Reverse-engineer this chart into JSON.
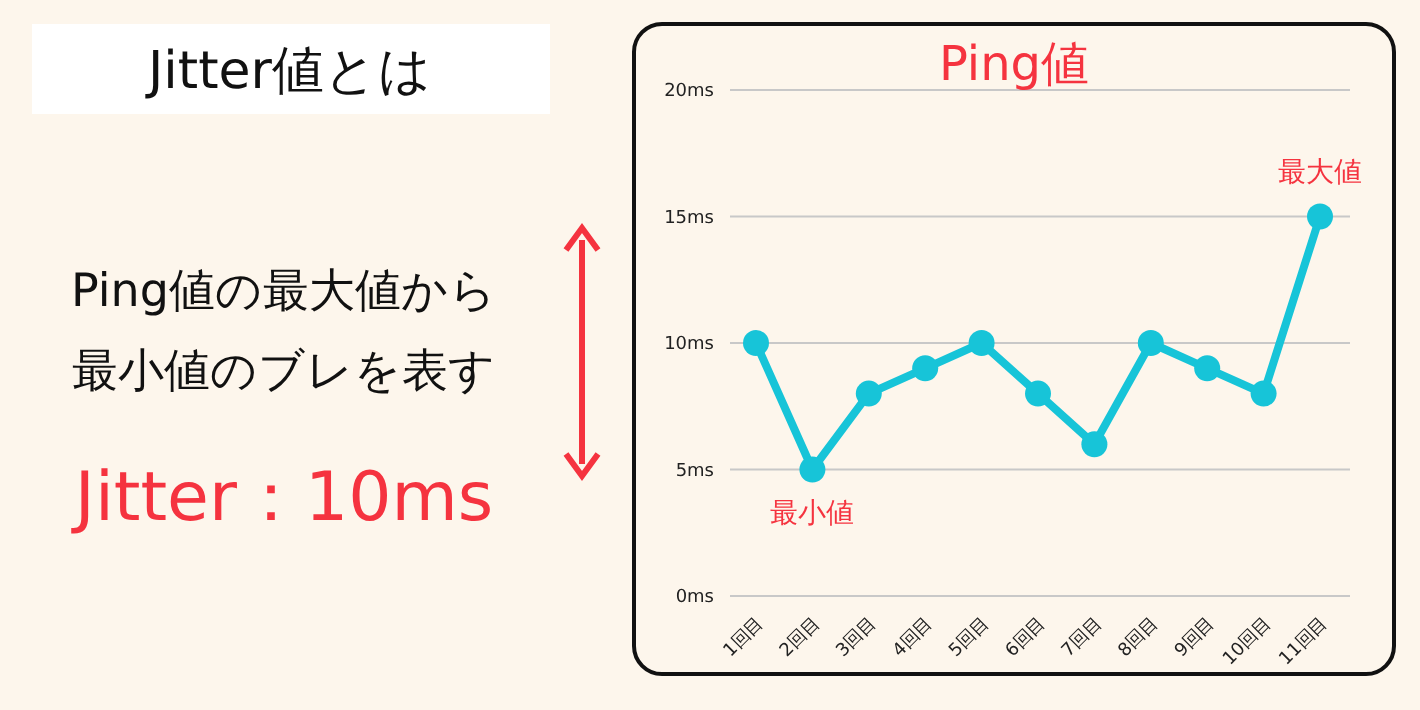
{
  "chart_data": {
    "type": "line",
    "title": "Ping値",
    "categories": [
      "1回目",
      "2回目",
      "3回目",
      "4回目",
      "5回目",
      "6回目",
      "7回目",
      "8回目",
      "9回目",
      "10回目",
      "11回目"
    ],
    "series": [
      {
        "color": "#17c4d8",
        "values": [
          10,
          5,
          8,
          9,
          10,
          8,
          6,
          10,
          9,
          8,
          15
        ]
      }
    ],
    "ylim": [
      0,
      20
    ],
    "yticks": [
      {
        "value": 0,
        "label": "0ms"
      },
      {
        "value": 5,
        "label": "5ms"
      },
      {
        "value": 10,
        "label": "10ms"
      },
      {
        "value": 15,
        "label": "15ms"
      },
      {
        "value": 20,
        "label": "20ms"
      }
    ],
    "grid": "y",
    "marker": "circle",
    "annotations": [
      "Jitter値とは",
      "Ping値の最大値から",
      "最小値のブレを表す",
      "Jitter：10ms",
      {
        "text": "最大値",
        "x": "11回目",
        "y": 15
      },
      {
        "text": "最小値",
        "x": "2回目",
        "y": 5
      }
    ]
  }
}
